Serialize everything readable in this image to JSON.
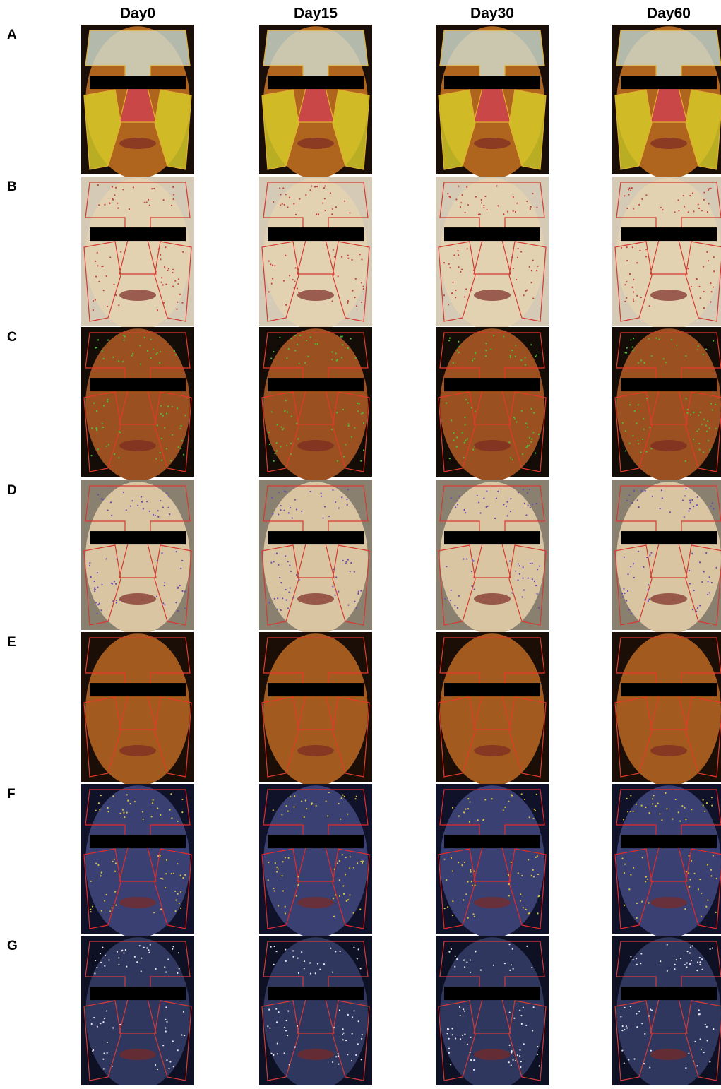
{
  "columns": [
    "Day0",
    "Day15",
    "Day30",
    "Day60"
  ],
  "rows": [
    "A",
    "B",
    "C",
    "D",
    "E",
    "F",
    "G"
  ]
}
